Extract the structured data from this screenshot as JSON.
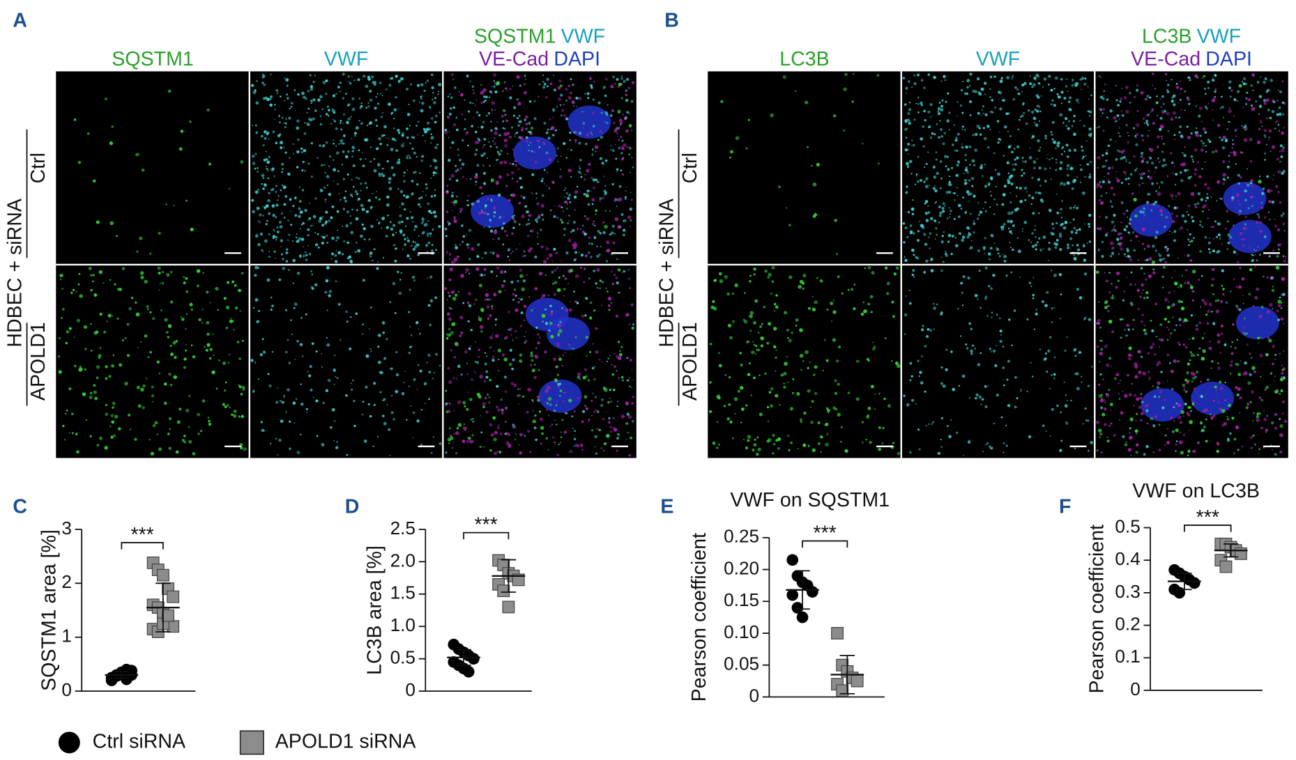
{
  "figure": {
    "panels": [
      {
        "label": "A",
        "group_label": "HDBEC + siRNA",
        "rows": [
          "Ctrl",
          "APOLD1"
        ],
        "columns": [
          {
            "lines": [
              [
                {
                  "text": "SQSTM1",
                  "color": "#2ca02c"
                }
              ]
            ]
          },
          {
            "lines": [
              [
                {
                  "text": "VWF",
                  "color": "#17a2b8"
                }
              ]
            ]
          },
          {
            "lines": [
              [
                {
                  "text": "SQSTM1",
                  "color": "#2ca02c"
                },
                {
                  "text": "VWF",
                  "color": "#17a2b8"
                }
              ],
              [
                {
                  "text": "VE-Cad",
                  "color": "#7b1fa2"
                },
                {
                  "text": "DAPI",
                  "color": "#1f3fbf"
                }
              ]
            ]
          }
        ]
      },
      {
        "label": "B",
        "group_label": "HDBEC + siRNA",
        "rows": [
          "Ctrl",
          "APOLD1"
        ],
        "columns": [
          {
            "lines": [
              [
                {
                  "text": "LC3B",
                  "color": "#2ca02c"
                }
              ]
            ]
          },
          {
            "lines": [
              [
                {
                  "text": "VWF",
                  "color": "#17a2b8"
                }
              ]
            ]
          },
          {
            "lines": [
              [
                {
                  "text": "LC3B",
                  "color": "#2ca02c"
                },
                {
                  "text": "VWF",
                  "color": "#17a2b8"
                }
              ],
              [
                {
                  "text": "VE-Cad",
                  "color": "#7b1fa2"
                },
                {
                  "text": "DAPI",
                  "color": "#1f3fbf"
                }
              ]
            ]
          }
        ]
      }
    ],
    "legend": [
      {
        "name": "Ctrl siRNA",
        "color": "#000000",
        "marker": "circle"
      },
      {
        "name": "APOLD1 siRNA",
        "color": "#8c8c8c",
        "marker": "square"
      }
    ]
  },
  "chart_data": [
    {
      "type": "dotplot",
      "label": "C",
      "ylabel": "SQSTM1 area [%]",
      "annotation": "***",
      "ylim": [
        0,
        3
      ],
      "yticks": [
        0,
        1,
        2,
        3
      ],
      "groups": [
        {
          "color": "#000000",
          "marker": "circle",
          "values": [
            0.25,
            0.3,
            0.35,
            0.4,
            0.3,
            0.2,
            0.28,
            0.33,
            0.22,
            0.38
          ],
          "mean": 0.3,
          "sd": 0.06
        },
        {
          "color": "#8c8c8c",
          "marker": "square",
          "values": [
            2.38,
            2.25,
            2.15,
            1.9,
            1.75,
            1.6,
            1.55,
            1.45,
            1.3,
            1.2,
            1.15,
            1.1,
            1.25,
            1.4
          ],
          "mean": 1.55,
          "sd": 0.45
        }
      ]
    },
    {
      "type": "dotplot",
      "label": "D",
      "ylabel": "LC3B area [%]",
      "annotation": "***",
      "ylim": [
        0,
        2.5
      ],
      "yticks": [
        0,
        0.5,
        {
          "value": 1,
          "label": "1.0"
        },
        1.5,
        {
          "value": 2,
          "label": "2.0"
        },
        2.5
      ],
      "groups": [
        {
          "color": "#000000",
          "marker": "circle",
          "values": [
            0.72,
            0.65,
            0.6,
            0.55,
            0.5,
            0.45,
            0.4,
            0.35,
            0.3
          ],
          "mean": 0.52,
          "sd": 0.12
        },
        {
          "color": "#8c8c8c",
          "marker": "square",
          "values": [
            2.02,
            1.95,
            1.82,
            1.78,
            1.72,
            1.65,
            1.55,
            1.3
          ],
          "mean": 1.78,
          "sd": 0.25
        }
      ]
    },
    {
      "type": "dotplot",
      "label": "E",
      "title": "VWF on SQSTM1",
      "ylabel": "Pearson coefficient",
      "annotation": "***",
      "ylim": [
        0,
        0.25
      ],
      "yticks": [
        0,
        0.05,
        {
          "value": 0.1,
          "label": "0.10"
        },
        0.15,
        {
          "value": 0.2,
          "label": "0.20"
        },
        0.25
      ],
      "groups": [
        {
          "color": "#000000",
          "marker": "circle",
          "values": [
            0.215,
            0.19,
            0.18,
            0.175,
            0.165,
            0.16,
            0.14,
            0.125
          ],
          "mean": 0.168,
          "sd": 0.03
        },
        {
          "color": "#8c8c8c",
          "marker": "square",
          "values": [
            0.1,
            0.05,
            0.04,
            0.03,
            0.025,
            0.02,
            0.01
          ],
          "mean": 0.035,
          "sd": 0.03
        }
      ]
    },
    {
      "type": "dotplot",
      "label": "F",
      "title": "VWF on LC3B",
      "ylabel": "Pearson coefficient",
      "annotation": "***",
      "ylim": [
        0,
        0.5
      ],
      "yticks": [
        0,
        0.1,
        0.2,
        0.3,
        0.4,
        0.5
      ],
      "groups": [
        {
          "color": "#000000",
          "marker": "circle",
          "values": [
            0.37,
            0.36,
            0.35,
            0.34,
            0.33,
            0.31,
            0.3
          ],
          "mean": 0.335,
          "sd": 0.025
        },
        {
          "color": "#8c8c8c",
          "marker": "square",
          "values": [
            0.45,
            0.45,
            0.44,
            0.43,
            0.42,
            0.4,
            0.38
          ],
          "mean": 0.43,
          "sd": 0.02
        }
      ]
    }
  ]
}
